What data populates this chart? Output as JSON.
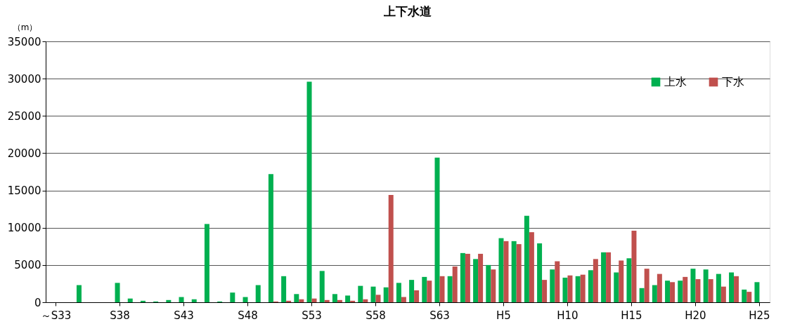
{
  "chart_data": {
    "type": "bar",
    "title": "上下水道",
    "ylabel": "（m）",
    "categories": [
      "～S33",
      null,
      null,
      null,
      null,
      "S38",
      null,
      null,
      null,
      null,
      "S43",
      null,
      null,
      null,
      null,
      "S48",
      null,
      null,
      null,
      null,
      "S53",
      null,
      null,
      null,
      null,
      "S58",
      null,
      null,
      null,
      null,
      "S63",
      null,
      null,
      null,
      null,
      "H5",
      null,
      null,
      null,
      null,
      "H10",
      null,
      null,
      null,
      null,
      "H15",
      null,
      null,
      null,
      null,
      "H20",
      null,
      null,
      null,
      null,
      "H25"
    ],
    "series": [
      {
        "name": "上水",
        "color": "#00b050",
        "values": [
          null,
          null,
          2300,
          null,
          null,
          2600,
          500,
          200,
          100,
          300,
          700,
          400,
          10500,
          100,
          1300,
          700,
          2300,
          17200,
          3500,
          1100,
          29600,
          4200,
          1100,
          900,
          2200,
          2100,
          2000,
          2600,
          3000,
          3400,
          19400,
          3500,
          6600,
          5800,
          5000,
          8600,
          8200,
          11600,
          7900,
          4400,
          3300,
          3500,
          4300,
          6700,
          4000,
          5900,
          1900,
          2300,
          2900,
          2900,
          4500,
          4400,
          3800,
          4000,
          1700,
          2700
        ]
      },
      {
        "name": "下水",
        "color": "#c0504d",
        "values": [
          null,
          null,
          null,
          null,
          null,
          null,
          null,
          null,
          null,
          null,
          null,
          null,
          null,
          null,
          null,
          null,
          null,
          100,
          200,
          400,
          500,
          300,
          300,
          200,
          400,
          1000,
          14400,
          700,
          1600,
          2900,
          3500,
          4800,
          6500,
          6500,
          4400,
          8200,
          7800,
          9400,
          3000,
          5500,
          3600,
          3700,
          5800,
          6700,
          5600,
          9600,
          4500,
          3800,
          2700,
          3400,
          3100,
          3100,
          2100,
          3500,
          1400,
          null
        ]
      }
    ],
    "ylim": [
      0,
      35000
    ],
    "yticks": [
      0,
      5000,
      10000,
      15000,
      20000,
      25000,
      30000,
      35000
    ],
    "grid": "y",
    "legend": "top right"
  }
}
